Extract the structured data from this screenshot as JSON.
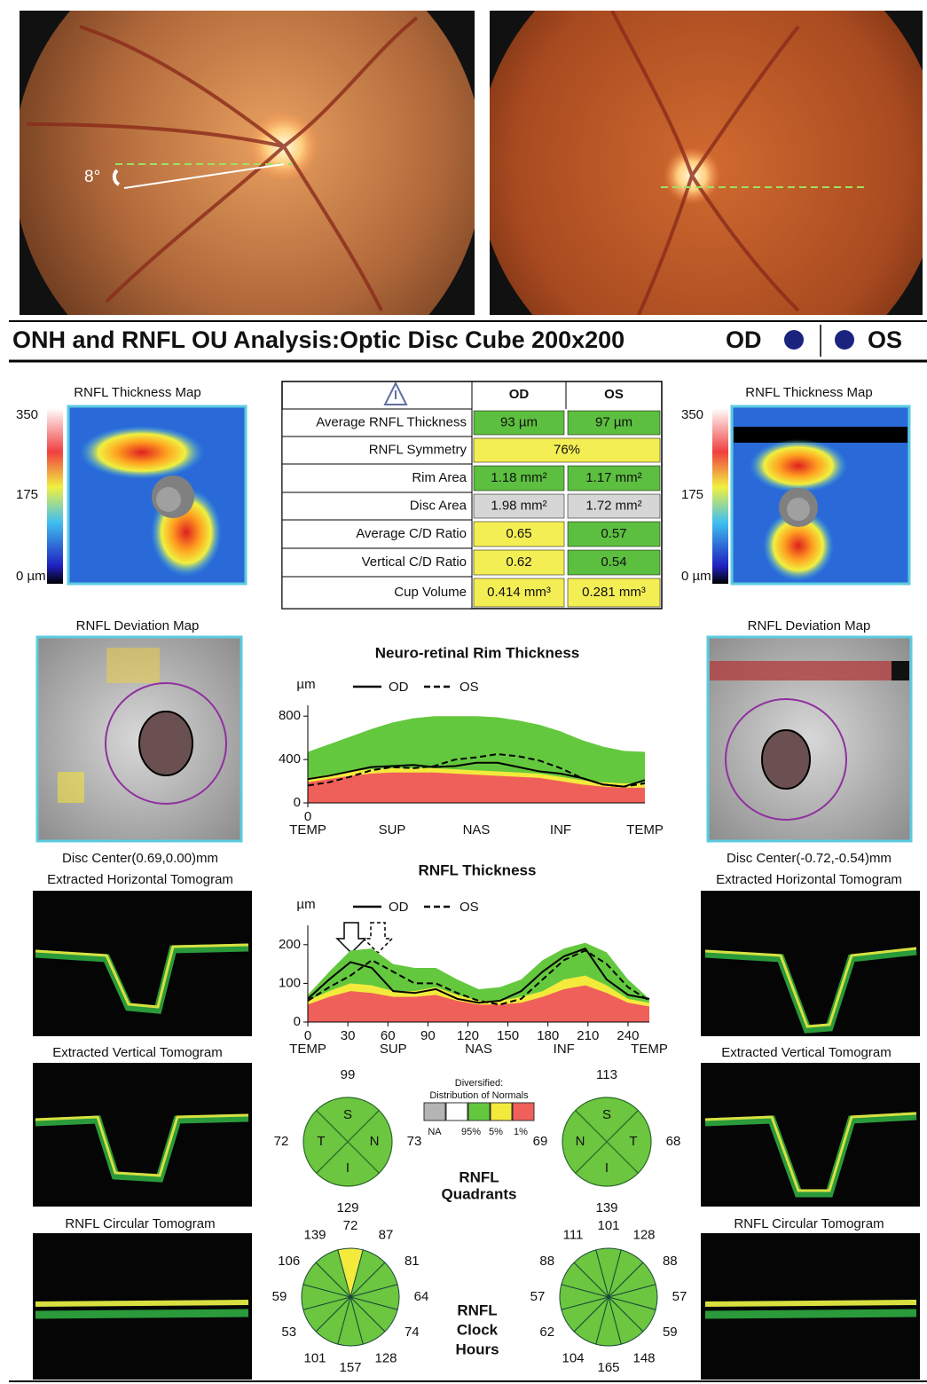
{
  "fundus": {
    "angle": "8°"
  },
  "header": {
    "title": "ONH and RNFL OU Analysis:Optic Disc Cube 200x200",
    "od": "OD",
    "os": "OS"
  },
  "thickness_maps": [
    {
      "title": "RNFL Thickness Map",
      "scale_labels": [
        "350",
        "175",
        "0 µm"
      ]
    },
    {
      "title": "RNFL Thickness Map",
      "scale_labels": [
        "350",
        "175",
        "0 µm"
      ]
    }
  ],
  "table": {
    "columns": [
      "OD",
      "OS"
    ],
    "rows": [
      {
        "label": "Average RNFL Thickness",
        "cells": [
          "93 µm",
          "97 µm"
        ],
        "colors": [
          "#5cbf3f",
          "#5cbf3f"
        ]
      },
      {
        "label": "RNFL Symmetry",
        "cells": [
          "76%"
        ],
        "colors": [
          "#f4ee55"
        ]
      },
      {
        "label": "Rim Area",
        "cells": [
          "1.18 mm²",
          "1.17 mm²"
        ],
        "colors": [
          "#5cbf3f",
          "#5cbf3f"
        ]
      },
      {
        "label": "Disc Area",
        "cells": [
          "1.98 mm²",
          "1.72 mm²"
        ],
        "colors": [
          "#d6d6d6",
          "#d6d6d6"
        ]
      },
      {
        "label": "Average C/D Ratio",
        "cells": [
          "0.65",
          "0.57"
        ],
        "colors": [
          "#f4ee55",
          "#5cbf3f"
        ]
      },
      {
        "label": "Vertical C/D Ratio",
        "cells": [
          "0.62",
          "0.54"
        ],
        "colors": [
          "#f4ee55",
          "#5cbf3f"
        ]
      },
      {
        "label": "Cup Volume",
        "cells": [
          "0.414 mm³",
          "0.281 mm³"
        ],
        "colors": [
          "#f4ee55",
          "#f4ee55"
        ]
      }
    ]
  },
  "deviation_maps": [
    {
      "title": "RNFL Deviation Map",
      "disc_center": "Disc Center(0.69,0.00)mm"
    },
    {
      "title": "RNFL Deviation Map",
      "disc_center": "Disc Center(-0.72,-0.54)mm"
    }
  ],
  "tomograms": [
    {
      "horizontal": "Extracted Horizontal Tomogram",
      "vertical": "Extracted Vertical Tomogram",
      "circular": "RNFL Circular Tomogram"
    },
    {
      "horizontal": "Extracted Horizontal Tomogram",
      "vertical": "Extracted Vertical Tomogram",
      "circular": "RNFL Circular Tomogram"
    }
  ],
  "chart_data": [
    {
      "type": "line",
      "title": "Neuro-retinal Rim Thickness",
      "y_label": "µm",
      "x": [
        0,
        16,
        32,
        48,
        64,
        80,
        96,
        112,
        128,
        144,
        160,
        176,
        192,
        208,
        224,
        240,
        256
      ],
      "xlim": [
        0,
        256
      ],
      "ylim": [
        0,
        900
      ],
      "yticks": [
        0,
        400,
        800
      ],
      "xticks": [
        0
      ],
      "x_regions": [
        {
          "value": 0,
          "label": "TEMP"
        },
        {
          "value": 64,
          "label": "SUP"
        },
        {
          "value": 128,
          "label": "NAS"
        },
        {
          "value": 192,
          "label": "INF"
        },
        {
          "value": 256,
          "label": "TEMP"
        }
      ],
      "bands": [
        {
          "color": "#63c83e",
          "values": [
            470,
            540,
            610,
            680,
            740,
            780,
            800,
            800,
            800,
            790,
            760,
            720,
            660,
            580,
            520,
            480,
            470
          ]
        },
        {
          "color": "#f3ea3c",
          "values": [
            230,
            260,
            290,
            310,
            320,
            320,
            320,
            310,
            300,
            290,
            280,
            270,
            240,
            210,
            190,
            180,
            180
          ]
        },
        {
          "color": "#f0605a",
          "values": [
            190,
            220,
            250,
            270,
            280,
            280,
            280,
            270,
            260,
            250,
            240,
            230,
            200,
            170,
            150,
            140,
            140
          ]
        }
      ],
      "series": [
        {
          "name": "OD",
          "color": "#000000",
          "dashed": false,
          "values": [
            220,
            250,
            290,
            330,
            340,
            350,
            330,
            340,
            370,
            370,
            330,
            290,
            270,
            230,
            170,
            150,
            210
          ]
        },
        {
          "name": "OS",
          "color": "#000000",
          "dashed": true,
          "values": [
            160,
            190,
            240,
            300,
            330,
            320,
            340,
            400,
            420,
            450,
            430,
            390,
            320,
            230,
            170,
            150,
            180
          ]
        }
      ]
    },
    {
      "type": "line",
      "title": "RNFL Thickness",
      "y_label": "µm",
      "x": [
        0,
        16,
        32,
        48,
        64,
        80,
        96,
        112,
        128,
        144,
        160,
        176,
        192,
        208,
        224,
        240,
        256
      ],
      "xlim": [
        0,
        256
      ],
      "ylim": [
        0,
        250
      ],
      "yticks": [
        0,
        100,
        200
      ],
      "xticks": [
        0,
        30,
        60,
        90,
        120,
        150,
        180,
        210,
        240
      ],
      "x_regions": [
        {
          "value": 0,
          "label": "TEMP"
        },
        {
          "value": 64,
          "label": "SUP"
        },
        {
          "value": 128,
          "label": "NAS"
        },
        {
          "value": 192,
          "label": "INF"
        },
        {
          "value": 256,
          "label": "TEMP"
        }
      ],
      "bands": [
        {
          "color": "#63c83e",
          "values": [
            70,
            130,
            185,
            190,
            150,
            140,
            140,
            110,
            85,
            90,
            110,
            160,
            190,
            205,
            180,
            110,
            60
          ]
        },
        {
          "color": "#f3ea3c",
          "values": [
            55,
            80,
            100,
            95,
            80,
            80,
            90,
            70,
            55,
            55,
            65,
            80,
            110,
            120,
            95,
            60,
            50
          ]
        },
        {
          "color": "#f0605a",
          "values": [
            45,
            65,
            80,
            75,
            65,
            65,
            70,
            55,
            45,
            45,
            50,
            65,
            85,
            95,
            75,
            50,
            40
          ]
        }
      ],
      "series": [
        {
          "name": "OD",
          "color": "#000000",
          "dashed": false,
          "values": [
            60,
            110,
            155,
            140,
            80,
            75,
            85,
            60,
            50,
            55,
            80,
            130,
            170,
            190,
            110,
            70,
            60
          ]
        },
        {
          "name": "OS",
          "color": "#000000",
          "dashed": true,
          "values": [
            55,
            90,
            120,
            160,
            130,
            100,
            100,
            75,
            55,
            45,
            60,
            110,
            160,
            185,
            150,
            90,
            55
          ]
        }
      ]
    }
  ],
  "normals_legend": {
    "title": [
      "Diversified:",
      "Distribution of Normals"
    ],
    "swatches": [
      "#b4b4b4",
      "#ffffff",
      "#63c83e",
      "#f3ea3c",
      "#f0605a"
    ],
    "labels": [
      "NA",
      "95%",
      "5%",
      "1%"
    ]
  },
  "quadrants": {
    "caption": [
      "RNFL",
      "Quadrants"
    ],
    "eyes": [
      {
        "sectors": [
          {
            "letter": "S",
            "value": 99
          },
          {
            "letter": "N",
            "value": 73
          },
          {
            "letter": "I",
            "value": 129
          },
          {
            "letter": "T",
            "value": 72
          }
        ],
        "colors": [
          "#6cc63f",
          "#6cc63f",
          "#6cc63f",
          "#6cc63f"
        ]
      },
      {
        "sectors": [
          {
            "letter": "S",
            "value": 113
          },
          {
            "letter": "T",
            "value": 68
          },
          {
            "letter": "I",
            "value": 139
          },
          {
            "letter": "N",
            "value": 69
          }
        ],
        "colors": [
          "#6cc63f",
          "#6cc63f",
          "#6cc63f",
          "#6cc63f"
        ]
      }
    ]
  },
  "clock_hours": {
    "caption": [
      "RNFL",
      "Clock",
      "Hours"
    ],
    "eyes": [
      {
        "values": [
          72,
          87,
          81,
          64,
          74,
          128,
          157,
          101,
          53,
          59,
          106,
          139
        ],
        "colors": [
          "#f3ea3c",
          "#6cc63f",
          "#6cc63f",
          "#6cc63f",
          "#6cc63f",
          "#6cc63f",
          "#6cc63f",
          "#6cc63f",
          "#6cc63f",
          "#6cc63f",
          "#6cc63f",
          "#6cc63f"
        ]
      },
      {
        "values": [
          101,
          128,
          88,
          57,
          59,
          148,
          165,
          104,
          62,
          57,
          88,
          111
        ],
        "colors": [
          "#6cc63f",
          "#6cc63f",
          "#6cc63f",
          "#6cc63f",
          "#6cc63f",
          "#6cc63f",
          "#6cc63f",
          "#6cc63f",
          "#6cc63f",
          "#6cc63f",
          "#6cc63f",
          "#6cc63f"
        ]
      }
    ]
  }
}
